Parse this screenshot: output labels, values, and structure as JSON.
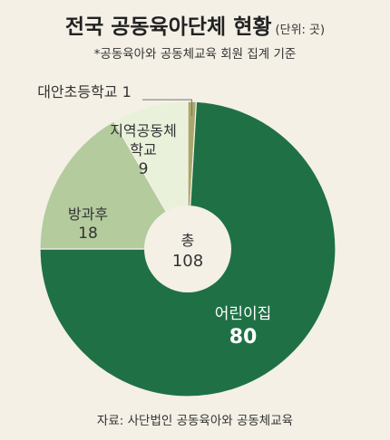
{
  "title": "전국 공동육아단체 현황",
  "unit": "(단위: 곳)",
  "subtitle": "*공동육아와 공동체교육 회원 집계 기준",
  "source": "자료: 사단법인 공동육아와 공동체교육",
  "center_label": {
    "line1": "총",
    "line2": "108"
  },
  "colors": {
    "background": "#f4f0e6",
    "어린이집": "#1f7145",
    "방과후": "#b3cb9d",
    "지역공동체학교": "#eaf1db",
    "대안초등학교": "#a8a86e"
  },
  "chart_data": {
    "type": "pie",
    "donut": true,
    "total": 108,
    "title": "전국 공동육아단체 현황",
    "unit": "곳",
    "slices": [
      {
        "label": "대안초등학교",
        "label_lines": [
          "대안초등학교 1"
        ],
        "value": 1,
        "color": "#a8a86e"
      },
      {
        "label": "어린이집",
        "label_lines": [
          "어린이집",
          "80"
        ],
        "value": 80,
        "color": "#1f7145"
      },
      {
        "label": "방과후",
        "label_lines": [
          "방과후",
          "18"
        ],
        "value": 18,
        "color": "#b3cb9d"
      },
      {
        "label": "지역공동체학교",
        "label_lines": [
          "지역공동체",
          "학교",
          "9"
        ],
        "value": 9,
        "color": "#eaf1db"
      }
    ]
  }
}
